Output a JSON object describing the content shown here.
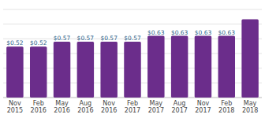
{
  "chart_data": {
    "type": "bar",
    "categories": [
      "Nov\n2015",
      "Feb\n2016",
      "May\n2016",
      "Aug\n2016",
      "Nov\n2016",
      "Feb\n2017",
      "May\n2017",
      "Aug\n2017",
      "Nov\n2017",
      "Feb\n2018",
      "May\n2018"
    ],
    "values": [
      0.52,
      0.52,
      0.57,
      0.57,
      0.57,
      0.57,
      0.63,
      0.63,
      0.63,
      0.63,
      0.8
    ],
    "value_labels": [
      "$0.52",
      "$0.52",
      "$0.57",
      "$0.57",
      "$0.57",
      "$0.57",
      "$0.63",
      "$0.63",
      "$0.63",
      "$0.63",
      null
    ],
    "data_labels": true,
    "color": "#6b2d8b",
    "ylim": [
      0,
      0.9
    ],
    "yticks": [
      0,
      0.15,
      0.3,
      0.45,
      0.6,
      0.75,
      0.9
    ],
    "grid": true,
    "tick_labels": "x"
  }
}
